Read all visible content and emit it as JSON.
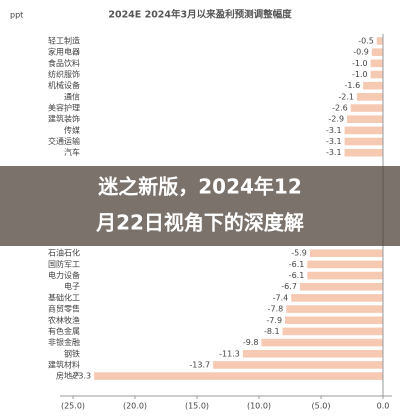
{
  "chart_data": {
    "type": "barh",
    "title": "2024E 2024年3月以来盈利预测调整幅度",
    "unit": "ppt",
    "categories": [
      "轻工制造",
      "家用电器",
      "食品饮料",
      "纺织服饰",
      "机械设备",
      "通信",
      "美容护理",
      "建筑装饰",
      "传媒",
      "交通运输",
      "汽车",
      null,
      null,
      null,
      null,
      null,
      null,
      null,
      null,
      "石油石化",
      "国防军工",
      "电力设备",
      "电子",
      "基础化工",
      "商贸零售",
      "农林牧渔",
      "有色金属",
      "非银金融",
      "钢铁",
      "建筑材料",
      "房地产"
    ],
    "values": [
      -0.5,
      -0.9,
      -1.0,
      -1.0,
      -1.6,
      -2.1,
      -2.6,
      -2.9,
      -3.1,
      -3.1,
      -3.1,
      null,
      null,
      null,
      null,
      null,
      null,
      null,
      null,
      -5.9,
      -6.1,
      -6.1,
      -6.7,
      -7.4,
      -7.8,
      -7.9,
      -8.1,
      -9.8,
      -11.3,
      -13.7,
      -23.3
    ],
    "value_labels": [
      "-0.5",
      "-0.9",
      "-1.0",
      "-1.0",
      "-1.6",
      "-2.1",
      "-2.6",
      "-2.9",
      "-3.1",
      "-3.1",
      "-3.1",
      null,
      null,
      null,
      null,
      null,
      null,
      null,
      null,
      "-5.9",
      "-6.1",
      "-6.1",
      "-6.7",
      "-7.4",
      "-7.8",
      "-7.9",
      "-8.1",
      "-9.8",
      "-11.3",
      "-13.7",
      "-23.3"
    ],
    "color": "#f6c9b3",
    "xlim": [
      -27,
      0.5
    ],
    "xticks": [
      {
        "value": -25,
        "label": "(25.0)"
      },
      {
        "value": -20,
        "label": "(20.0)"
      },
      {
        "value": -15,
        "label": "(15.0)"
      },
      {
        "value": -10,
        "label": "(10.0)"
      },
      {
        "value": -5,
        "label": "(5.0)"
      },
      {
        "value": 0,
        "label": "0.0"
      }
    ]
  },
  "banner": {
    "lines": [
      "迷之新版，2024年12",
      "月22日视角下的深度解"
    ]
  }
}
